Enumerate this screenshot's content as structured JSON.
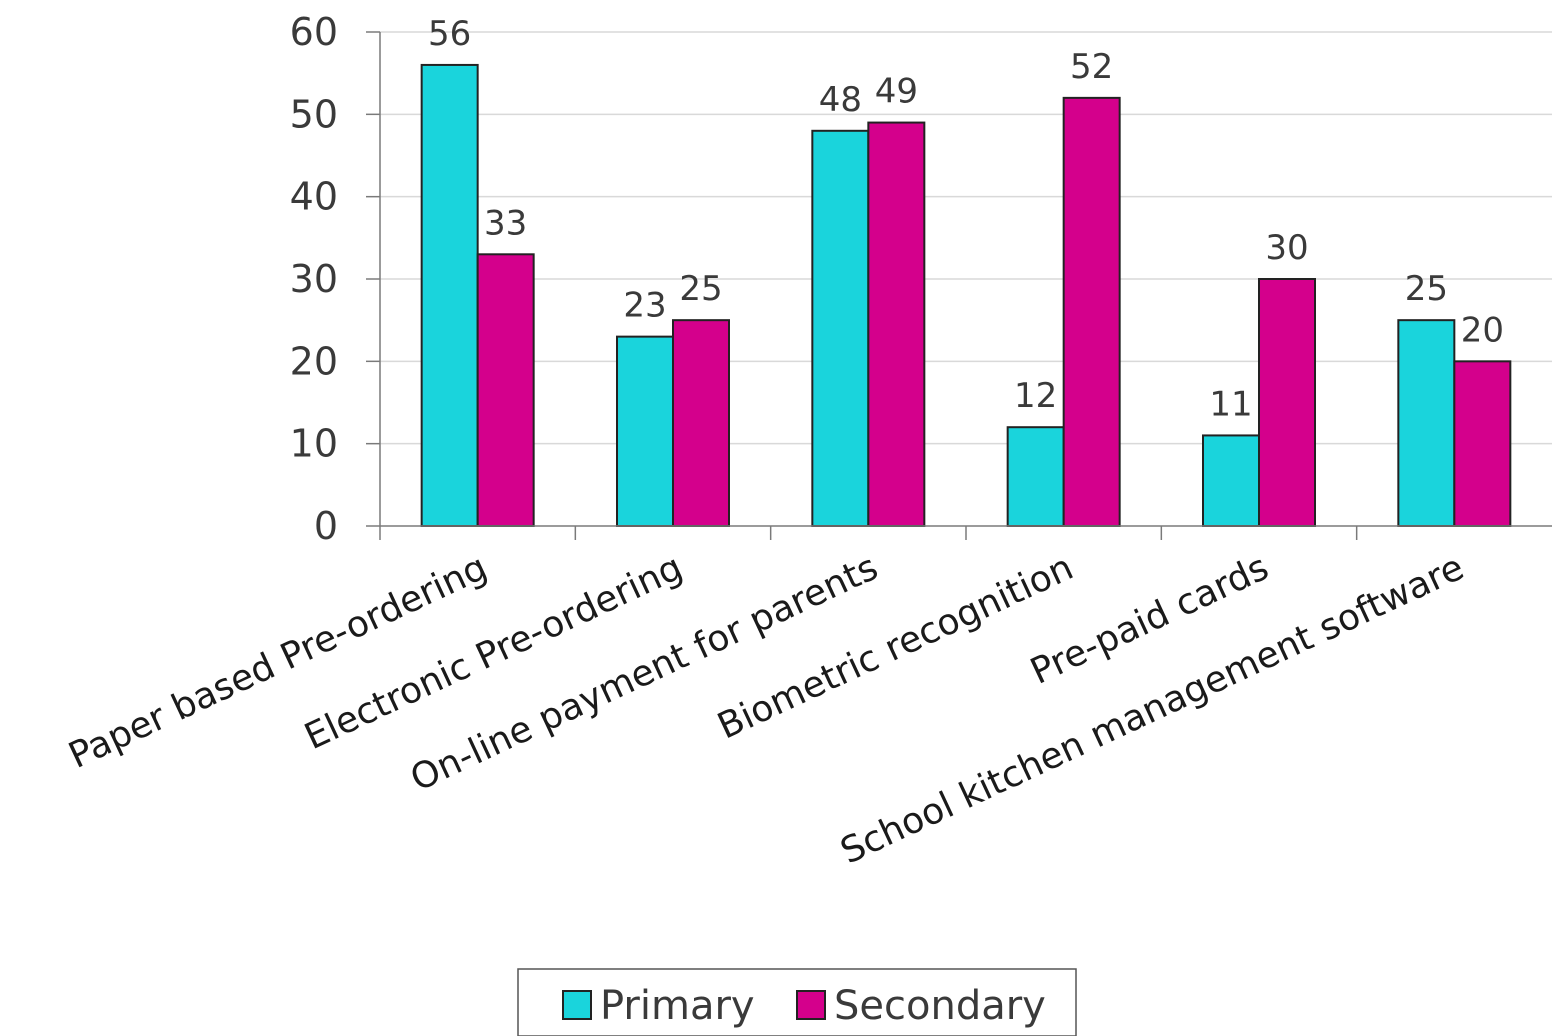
{
  "chart_data": {
    "type": "bar",
    "title": "",
    "xlabel": "",
    "ylabel": "",
    "ylim": [
      0,
      60
    ],
    "yticks": [
      0,
      10,
      20,
      30,
      40,
      50,
      60
    ],
    "grid": "horizontal",
    "legend": "bottom-center",
    "categories": [
      "Paper based Pre-ordering",
      "Electronic Pre-ordering",
      "On-line payment for parents",
      "Biometric recognition",
      "Pre-paid cards",
      "School kitchen management software"
    ],
    "series": [
      {
        "name": "Primary",
        "color": "#1ad4dc",
        "values": [
          56,
          23,
          48,
          12,
          11,
          25
        ]
      },
      {
        "name": "Secondary",
        "color": "#d4008c",
        "values": [
          33,
          25,
          49,
          52,
          30,
          20
        ]
      }
    ]
  }
}
